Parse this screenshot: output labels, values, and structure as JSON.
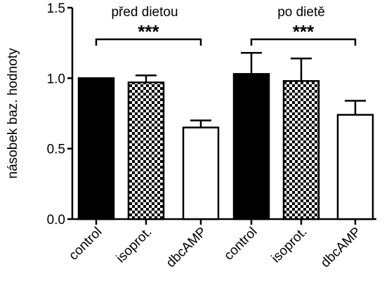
{
  "chart_data": {
    "type": "bar",
    "ylabel": "násobek baz. hodnoty",
    "ylim": [
      0,
      1.5
    ],
    "yticks": [
      "0.0",
      "0.5",
      "1.0",
      "1.5"
    ],
    "categories": [
      "control",
      "isoprot.",
      "dbcAMP",
      "control",
      "isoprot.",
      "dbcAMP"
    ],
    "groups": [
      {
        "label": "před dietou",
        "significance": "***"
      },
      {
        "label": "po dietě",
        "significance": "***"
      }
    ],
    "bars": [
      {
        "group": 0,
        "category": "control",
        "value": 1.0,
        "error": 0.0,
        "fill": "solid"
      },
      {
        "group": 0,
        "category": "isoprot.",
        "value": 0.97,
        "error": 0.05,
        "fill": "checker"
      },
      {
        "group": 0,
        "category": "dbcAMP",
        "value": 0.65,
        "error": 0.05,
        "fill": "empty"
      },
      {
        "group": 1,
        "category": "control",
        "value": 1.03,
        "error": 0.15,
        "fill": "solid"
      },
      {
        "group": 1,
        "category": "isoprot.",
        "value": 0.98,
        "error": 0.16,
        "fill": "checker"
      },
      {
        "group": 1,
        "category": "dbcAMP",
        "value": 0.74,
        "error": 0.1,
        "fill": "empty"
      }
    ],
    "colors": {
      "solid": "#000000",
      "empty": "#ffffff",
      "stroke": "#000000"
    }
  }
}
